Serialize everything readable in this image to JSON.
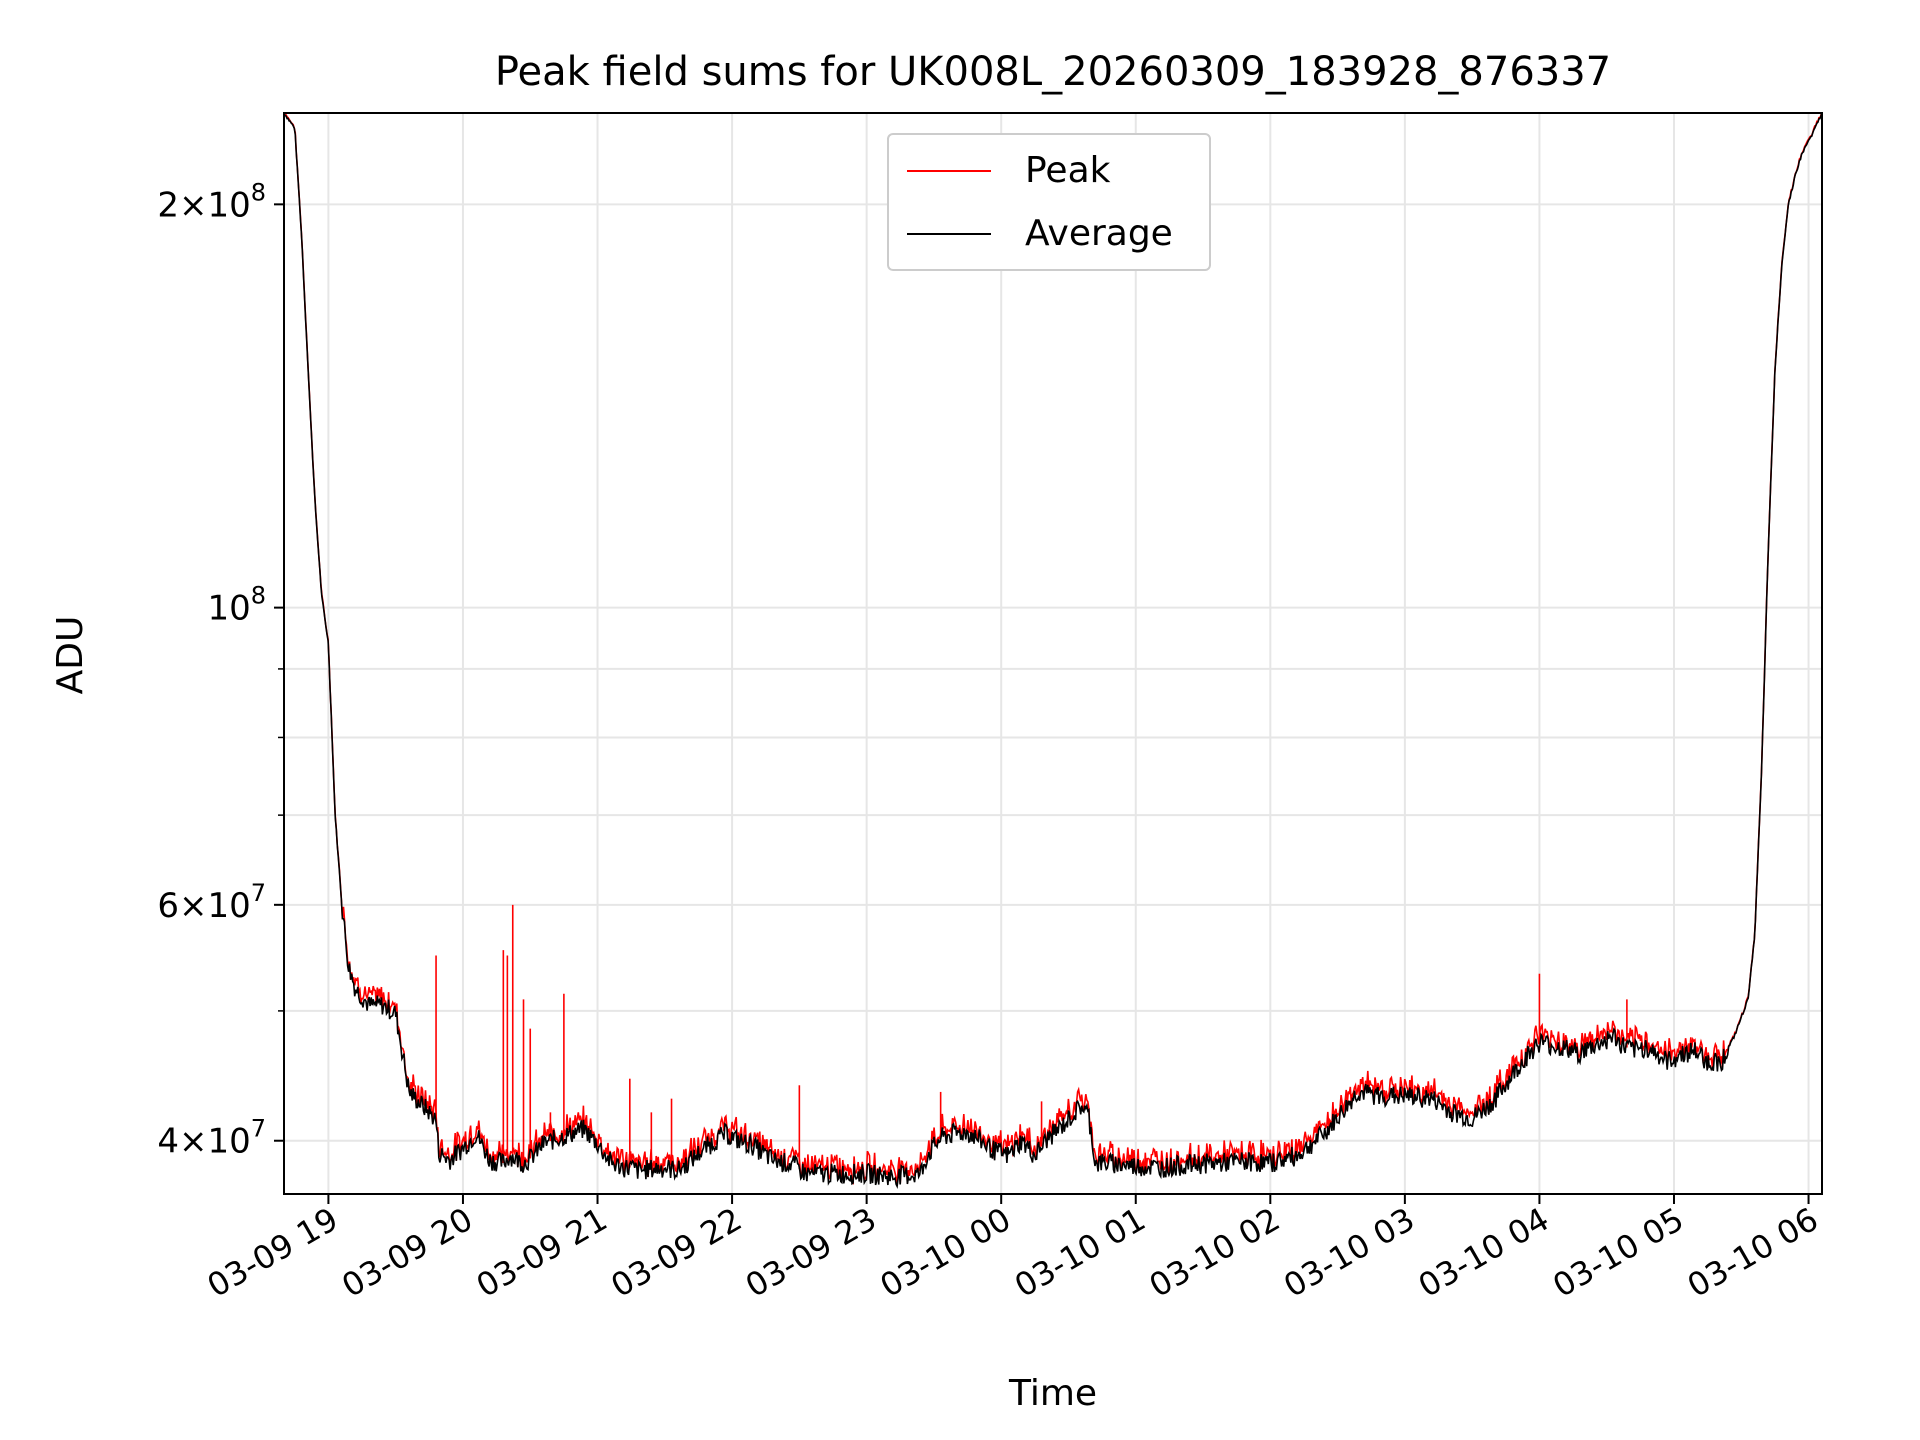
{
  "chart_data": {
    "type": "line",
    "title": "Peak field sums for UK008L_20260309_183928_876337",
    "xlabel": "Time",
    "ylabel": "ADU",
    "yscale": "log",
    "grid": true,
    "legend": {
      "position": "top-center",
      "entries": [
        "Peak",
        "Average"
      ]
    },
    "xlim_hours": [
      18.67,
      30.1
    ],
    "ylim": [
      36500000,
      234000000
    ],
    "x_ticks": [
      {
        "value": 19,
        "label": "03-09 19"
      },
      {
        "value": 20,
        "label": "03-09 20"
      },
      {
        "value": 21,
        "label": "03-09 21"
      },
      {
        "value": 22,
        "label": "03-09 22"
      },
      {
        "value": 23,
        "label": "03-09 23"
      },
      {
        "value": 24,
        "label": "03-10 00"
      },
      {
        "value": 25,
        "label": "03-10 01"
      },
      {
        "value": 26,
        "label": "03-10 02"
      },
      {
        "value": 27,
        "label": "03-10 03"
      },
      {
        "value": 28,
        "label": "03-10 04"
      },
      {
        "value": 29,
        "label": "03-10 05"
      },
      {
        "value": 30,
        "label": "03-10 06"
      }
    ],
    "y_major_ticks": [
      {
        "value": 40000000,
        "mantissa": "4",
        "base": "10",
        "exp": "7"
      },
      {
        "value": 60000000,
        "mantissa": "6",
        "base": "10",
        "exp": "7"
      },
      {
        "value": 100000000,
        "mantissa": "",
        "base": "10",
        "exp": "8"
      },
      {
        "value": 200000000,
        "mantissa": "2",
        "base": "10",
        "exp": "8"
      }
    ],
    "y_minor_ticks": [
      50000000,
      70000000,
      80000000,
      90000000
    ],
    "series": [
      {
        "name": "Average",
        "color": "#000000",
        "x": [
          18.67,
          18.75,
          18.8,
          18.85,
          18.9,
          18.95,
          19.0,
          19.05,
          19.1,
          19.15,
          19.2,
          19.3,
          19.4,
          19.5,
          19.6,
          19.7,
          19.8,
          19.82,
          19.9,
          20.0,
          20.1,
          20.2,
          20.3,
          20.35,
          20.45,
          20.5,
          20.6,
          20.8,
          20.9,
          21.0,
          21.1,
          21.2,
          21.25,
          21.3,
          21.4,
          21.5,
          21.6,
          21.8,
          21.95,
          22.05,
          22.15,
          22.3,
          22.45,
          22.55,
          22.7,
          22.8,
          23.0,
          23.2,
          23.4,
          23.45,
          23.55,
          23.65,
          23.75,
          23.85,
          23.95,
          24.05,
          24.15,
          24.25,
          24.35,
          24.45,
          24.55,
          24.6,
          24.65,
          24.7,
          24.8,
          25.0,
          25.2,
          25.4,
          25.6,
          25.8,
          26.0,
          26.2,
          26.4,
          26.55,
          26.65,
          26.8,
          27.0,
          27.2,
          27.35,
          27.5,
          27.65,
          27.8,
          27.9,
          28.0,
          28.1,
          28.2,
          28.3,
          28.45,
          28.55,
          28.6,
          28.7,
          28.8,
          28.85,
          28.95,
          29.05,
          29.15,
          29.25,
          29.35,
          29.45,
          29.55,
          29.6,
          29.65,
          29.7,
          29.75,
          29.8,
          29.85,
          29.9,
          29.95,
          30.0,
          30.05,
          30.1
        ],
        "y": [
          234000000,
          228000000,
          190000000,
          150000000,
          120000000,
          102000000,
          94000000,
          70000000,
          60000000,
          54000000,
          52000000,
          50500000,
          50500000,
          49800000,
          43500000,
          42500000,
          41500000,
          39200000,
          38700000,
          39500000,
          40500000,
          38700000,
          38500000,
          39000000,
          38500000,
          38800000,
          39800000,
          40500000,
          40800000,
          39800000,
          38500000,
          38200000,
          38200000,
          38000000,
          38100000,
          38200000,
          38000000,
          39500000,
          40500000,
          40000000,
          39700000,
          38700000,
          38400000,
          37800000,
          37800000,
          37800000,
          37800000,
          37600000,
          37800000,
          39000000,
          40200000,
          40500000,
          40600000,
          40000000,
          39300000,
          39000000,
          40000000,
          39000000,
          40200000,
          41000000,
          42000000,
          42500000,
          41800000,
          38500000,
          38500000,
          38300000,
          38200000,
          38400000,
          38500000,
          38600000,
          38500000,
          39000000,
          40500000,
          42200000,
          43500000,
          43200000,
          43200000,
          43000000,
          42000000,
          41500000,
          42700000,
          44800000,
          46200000,
          47400000,
          47100000,
          46800000,
          46500000,
          47300000,
          47900000,
          47200000,
          46700000,
          47000000,
          46600000,
          45800000,
          46400000,
          46700000,
          45800000,
          45800000,
          47900000,
          51000000,
          57000000,
          75000000,
          110000000,
          150000000,
          180000000,
          200000000,
          210000000,
          218000000,
          223000000,
          228000000,
          234000000
        ]
      },
      {
        "name": "Peak",
        "color": "#ff0000",
        "spikes": [
          {
            "x": 19.8,
            "y": 55000000
          },
          {
            "x": 20.3,
            "y": 55500000
          },
          {
            "x": 20.33,
            "y": 55000000
          },
          {
            "x": 20.37,
            "y": 60000000
          },
          {
            "x": 20.45,
            "y": 51000000
          },
          {
            "x": 20.5,
            "y": 48500000
          },
          {
            "x": 20.65,
            "y": 42000000
          },
          {
            "x": 20.75,
            "y": 51500000
          },
          {
            "x": 21.24,
            "y": 44500000
          },
          {
            "x": 21.4,
            "y": 42000000
          },
          {
            "x": 21.55,
            "y": 43000000
          },
          {
            "x": 22.5,
            "y": 44000000
          },
          {
            "x": 23.55,
            "y": 43500000
          },
          {
            "x": 24.3,
            "y": 42800000
          },
          {
            "x": 28.0,
            "y": 53300000
          },
          {
            "x": 28.65,
            "y": 51000000
          }
        ]
      }
    ]
  }
}
